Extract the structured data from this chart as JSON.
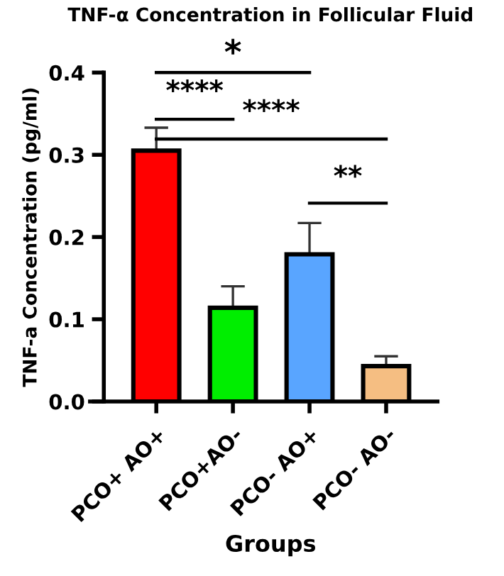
{
  "chart_data": {
    "type": "bar",
    "title": "TNF-α Concentration in Follicular Fluid",
    "xlabel": "Groups",
    "ylabel": "TNF-a Concentration (pg/ml)",
    "categories": [
      "PCO+ AO+",
      "PCO+AO-",
      "PCO- AO+",
      "PCO- AO-"
    ],
    "values": [
      0.305,
      0.114,
      0.179,
      0.043
    ],
    "errors": [
      0.028,
      0.026,
      0.038,
      0.012
    ],
    "colors": [
      "#ff0000",
      "#00ee00",
      "#59a5ff",
      "#f5be82"
    ],
    "ylim": [
      0,
      0.4
    ],
    "yticks": [
      {
        "value": 0,
        "label": "0.0"
      },
      {
        "value": 0.1,
        "label": "0.1"
      },
      {
        "value": 0.2,
        "label": "0.2"
      },
      {
        "value": 0.3,
        "label": "0.3"
      },
      {
        "value": 0.4,
        "label": "0.4"
      }
    ],
    "annotations": [
      "*",
      "****",
      "****",
      "**"
    ],
    "grid": false,
    "legend": false
  }
}
